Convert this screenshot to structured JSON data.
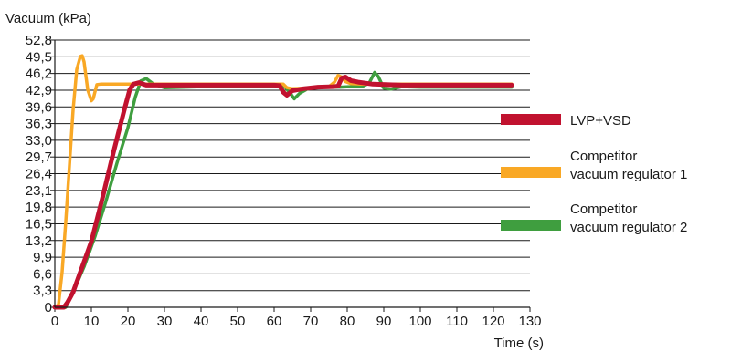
{
  "chart_data": {
    "type": "line",
    "title": "",
    "ylabel": "Vacuum (kPa)",
    "xlabel": "Time (s)",
    "xlim": [
      0,
      130
    ],
    "ylim": [
      0,
      52.8
    ],
    "x_ticks": [
      "0",
      "10",
      "20",
      "30",
      "40",
      "50",
      "60",
      "70",
      "80",
      "90",
      "100",
      "110",
      "120",
      "130"
    ],
    "y_ticks": [
      "0",
      "3,3",
      "6,6",
      "9,9",
      "13,2",
      "16,5",
      "19,8",
      "23,1",
      "26,4",
      "29,7",
      "33,0",
      "36,3",
      "39,6",
      "42,9",
      "46,2",
      "49,5",
      "52,8"
    ],
    "grid": "horizontal",
    "legend_position": "right",
    "series": [
      {
        "name": "LVP+VSD",
        "legend_lines": [
          "LVP+VSD"
        ],
        "color": "#c1122f",
        "stroke": "thick",
        "x": [
          0,
          2.5,
          3.5,
          5,
          7,
          10,
          13,
          16,
          19,
          20.5,
          21.5,
          23,
          25,
          30,
          40,
          50,
          60,
          61.5,
          62.5,
          63.5,
          65,
          68,
          72,
          76,
          77.5,
          78.5,
          79.5,
          81,
          83,
          87,
          95,
          110,
          125
        ],
        "y": [
          0,
          0,
          1,
          3,
          7,
          13,
          21.5,
          30.5,
          39,
          43,
          44.1,
          44.4,
          43.9,
          43.9,
          43.9,
          43.9,
          43.9,
          43.8,
          42.5,
          41.9,
          42.8,
          43.2,
          43.5,
          43.6,
          43.7,
          45.3,
          45.5,
          44.8,
          44.5,
          44.1,
          43.9,
          43.9,
          43.9
        ]
      },
      {
        "name": "Competitor vacuum regulator 1",
        "legend_lines": [
          "Competitor",
          "vacuum regulator 1"
        ],
        "color": "#f9a825",
        "stroke": "medium",
        "x": [
          0,
          1,
          2,
          3,
          4,
          5,
          6,
          7,
          7.5,
          8,
          9,
          10,
          10.5,
          11.5,
          12.5,
          20,
          30,
          40,
          50,
          60,
          62.5,
          63.5,
          65,
          68,
          72,
          75,
          76.5,
          77.5,
          78.5,
          79.5,
          81,
          84,
          90,
          100,
          110,
          125
        ],
        "y": [
          0,
          0.5,
          7,
          17,
          28,
          39,
          47,
          49.6,
          49.7,
          48.5,
          43,
          40.8,
          41.2,
          44,
          44.1,
          44.1,
          44.1,
          44.1,
          44.1,
          44.1,
          44.1,
          43.4,
          43.2,
          43.3,
          43.5,
          43.6,
          44.5,
          45.8,
          45.5,
          44.6,
          44.2,
          44.1,
          44.1,
          44.1,
          44.1,
          44.1
        ]
      },
      {
        "name": "Competitor vacuum regulator 2",
        "legend_lines": [
          "Competitor",
          "vacuum regulator 2"
        ],
        "color": "#3f9e3f",
        "stroke": "medium",
        "x": [
          0,
          3,
          5,
          8,
          11,
          14,
          17,
          20,
          22,
          23.5,
          25,
          27,
          30,
          40,
          50,
          60,
          63,
          64.5,
          65.5,
          67,
          69,
          72,
          78,
          81,
          84,
          86,
          87.5,
          88.5,
          90,
          92,
          95,
          100,
          110,
          125
        ],
        "y": [
          0,
          0,
          3,
          8,
          14,
          21,
          28.5,
          35.5,
          41.5,
          44.7,
          45.2,
          44.1,
          43.4,
          43.6,
          43.6,
          43.6,
          43.5,
          42.2,
          41.2,
          42.3,
          43.1,
          43.5,
          43.5,
          43.6,
          43.6,
          44.3,
          46.4,
          45.6,
          43.3,
          43.1,
          43.6,
          43.5,
          43.5,
          43.5
        ]
      }
    ]
  }
}
